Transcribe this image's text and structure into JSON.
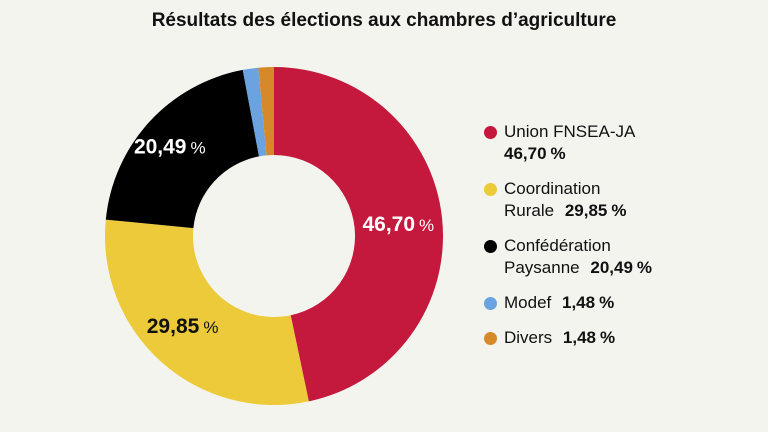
{
  "chart_data": {
    "type": "pie",
    "variant": "donut",
    "title": "Résultats des élections aux chambres d’agriculture",
    "series": [
      {
        "name": "Union FNSEA-JA",
        "legend_line1": "Union FNSEA-JA",
        "legend_line2": "",
        "value": 46.7,
        "display": "46,70",
        "color": "#c4183c",
        "label_color": "#ffffff"
      },
      {
        "name": "Coordination Rurale",
        "legend_line1": "Coordination",
        "legend_line2": "Rurale",
        "value": 29.85,
        "display": "29,85",
        "color": "#ecca3a",
        "label_color": "#111111"
      },
      {
        "name": "Confédération Paysanne",
        "legend_line1": "Confédération",
        "legend_line2": "Paysanne",
        "value": 20.49,
        "display": "20,49",
        "color": "#000000",
        "label_color": "#ffffff"
      },
      {
        "name": "Modef",
        "legend_line1": "Modef",
        "legend_line2": "",
        "value": 1.48,
        "display": "1,48",
        "color": "#6aa3e0",
        "label_color": null
      },
      {
        "name": "Divers",
        "legend_line1": "Divers",
        "legend_line2": "",
        "value": 1.48,
        "display": "1,48",
        "color": "#d6892a",
        "label_color": null
      }
    ],
    "unit": "%",
    "legend_position": "right",
    "start": "top, clockwise"
  }
}
